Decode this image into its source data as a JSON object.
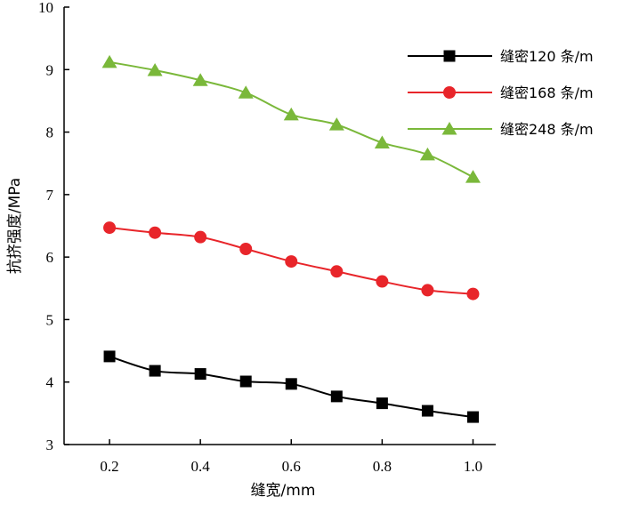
{
  "chart_data": {
    "type": "line",
    "xlabel": "缝宽/mm",
    "ylabel": "抗挤强度/MPa",
    "xlim": [
      0.1,
      1.05
    ],
    "ylim": [
      3,
      10
    ],
    "xticks": [
      0.2,
      0.4,
      0.6,
      0.8,
      1.0
    ],
    "xtick_labels": [
      "0.2",
      "0.4",
      "0.6",
      "0.8",
      "1.0"
    ],
    "yticks": [
      3,
      4,
      5,
      6,
      7,
      8,
      9,
      10
    ],
    "ytick_labels": [
      "3",
      "4",
      "5",
      "6",
      "7",
      "8",
      "9",
      "10"
    ],
    "x": [
      0.2,
      0.3,
      0.4,
      0.5,
      0.6,
      0.7,
      0.8,
      0.9,
      1.0
    ],
    "legend_position": "top-right",
    "series": [
      {
        "name": "缝密120 条/m",
        "marker": "square",
        "color": "#000000",
        "values": [
          4.41,
          4.18,
          4.13,
          4.01,
          3.97,
          3.77,
          3.66,
          3.54,
          3.44
        ]
      },
      {
        "name": "缝密168 条/m",
        "marker": "circle",
        "color": "#e8252a",
        "values": [
          6.47,
          6.39,
          6.32,
          6.13,
          5.93,
          5.77,
          5.61,
          5.47,
          5.41
        ]
      },
      {
        "name": "缝密248 条/m",
        "marker": "triangle",
        "color": "#7ab83a",
        "values": [
          9.12,
          8.99,
          8.83,
          8.63,
          8.28,
          8.12,
          7.83,
          7.64,
          7.28
        ]
      }
    ]
  }
}
